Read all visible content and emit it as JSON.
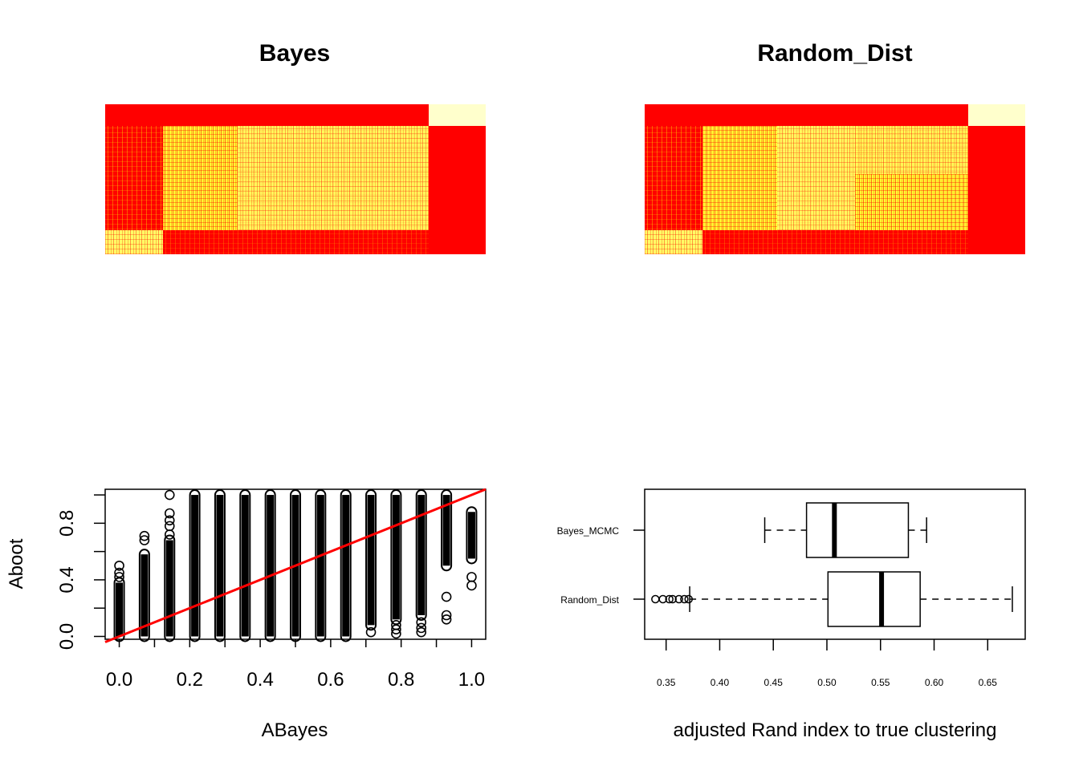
{
  "chart_data": [
    {
      "type": "heatmap",
      "title": "Bayes",
      "colors": {
        "low": "#ff0000",
        "high": "#ffffcc",
        "mid": "#ffff00"
      }
    },
    {
      "type": "heatmap",
      "title": "Random_Dist",
      "colors": {
        "low": "#ff0000",
        "high": "#ffffcc",
        "mid": "#ffff00"
      }
    },
    {
      "type": "scatter",
      "xlabel": "ABayes",
      "ylabel": "Aboot",
      "xlim": [
        -0.04,
        1.04
      ],
      "ylim": [
        -0.02,
        1.04
      ],
      "xticks": [
        "0.0",
        "0.2",
        "0.4",
        "0.6",
        "0.8",
        "1.0"
      ],
      "yticks": [
        "0.0",
        "0.4",
        "0.8"
      ],
      "point_columns": [
        {
          "x": 0.0,
          "ymin": 0.0,
          "ymax": 0.38,
          "outliers": [
            0.42,
            0.45,
            0.5
          ]
        },
        {
          "x": 0.0714,
          "ymin": 0.0,
          "ymax": 0.58,
          "outliers": [
            0.68,
            0.71
          ]
        },
        {
          "x": 0.1429,
          "ymin": 0.0,
          "ymax": 0.68,
          "outliers": [
            0.72,
            0.78,
            0.82,
            0.87,
            1.0
          ]
        },
        {
          "x": 0.2143,
          "ymin": 0.0,
          "ymax": 1.0,
          "outliers": []
        },
        {
          "x": 0.2857,
          "ymin": 0.0,
          "ymax": 1.0,
          "outliers": []
        },
        {
          "x": 0.3571,
          "ymin": 0.0,
          "ymax": 1.0,
          "outliers": []
        },
        {
          "x": 0.4286,
          "ymin": 0.0,
          "ymax": 1.0,
          "outliers": []
        },
        {
          "x": 0.5,
          "ymin": 0.0,
          "ymax": 1.0,
          "outliers": []
        },
        {
          "x": 0.5714,
          "ymin": 0.0,
          "ymax": 1.0,
          "outliers": []
        },
        {
          "x": 0.6429,
          "ymin": 0.0,
          "ymax": 1.0,
          "outliers": []
        },
        {
          "x": 0.7143,
          "ymin": 0.08,
          "ymax": 1.0,
          "outliers": [
            0.03
          ]
        },
        {
          "x": 0.7857,
          "ymin": 0.12,
          "ymax": 1.0,
          "outliers": [
            0.02,
            0.05,
            0.08
          ]
        },
        {
          "x": 0.8571,
          "ymin": 0.15,
          "ymax": 1.0,
          "outliers": [
            0.03,
            0.06,
            0.1
          ]
        },
        {
          "x": 0.9286,
          "ymin": 0.5,
          "ymax": 1.0,
          "outliers": [
            0.12,
            0.15,
            0.28
          ]
        },
        {
          "x": 1.0,
          "ymin": 0.55,
          "ymax": 0.88,
          "outliers": [
            0.36,
            0.42
          ]
        }
      ],
      "reference_line": {
        "intercept": 0,
        "slope": 1,
        "color": "#ff0000"
      }
    },
    {
      "type": "box",
      "xlabel": "adjusted Rand index to true clustering",
      "xlim": [
        0.33,
        0.685
      ],
      "xticks": [
        "0.35",
        "0.40",
        "0.45",
        "0.50",
        "0.55",
        "0.60",
        "0.65"
      ],
      "series": [
        {
          "name": "Bayes_MCMC",
          "min": 0.442,
          "q1": 0.481,
          "median": 0.507,
          "q3": 0.576,
          "max": 0.593,
          "outliers": []
        },
        {
          "name": "Random_Dist",
          "min": 0.372,
          "q1": 0.501,
          "median": 0.551,
          "q3": 0.587,
          "max": 0.673,
          "outliers": [
            0.34,
            0.347,
            0.353,
            0.356,
            0.362,
            0.367,
            0.371
          ]
        }
      ]
    }
  ]
}
